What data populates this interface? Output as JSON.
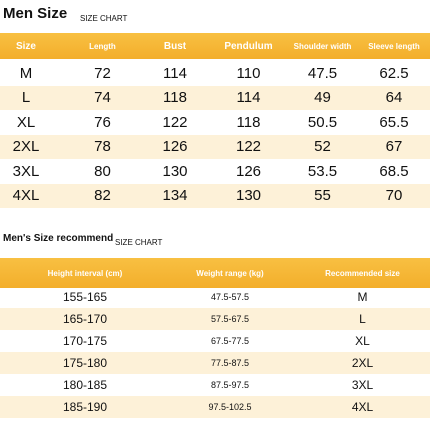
{
  "size_chart": {
    "title": "Men Size",
    "subtitle": "SIZE CHART",
    "columns": [
      "Size",
      "Length",
      "Bust",
      "Pendulum",
      "Shoulder width",
      "Sleeve length"
    ],
    "rows": [
      [
        "M",
        72,
        114,
        110,
        47.5,
        62.5
      ],
      [
        "L",
        74,
        118,
        114,
        49,
        64
      ],
      [
        "XL",
        76,
        122,
        118,
        50.5,
        65.5
      ],
      [
        "2XL",
        78,
        126,
        122,
        52,
        67
      ],
      [
        "3XL",
        80,
        130,
        126,
        53.5,
        68.5
      ],
      [
        "4XL",
        82,
        134,
        130,
        55,
        70
      ]
    ]
  },
  "recommend": {
    "title": "Men's Size recommend",
    "subtitle": "SIZE CHART",
    "columns": [
      "Height interval (cm)",
      "Weight range (kg)",
      "Recommended size"
    ],
    "rows": [
      [
        "155-165",
        "47.5-57.5",
        "M"
      ],
      [
        "165-170",
        "57.5-67.5",
        "L"
      ],
      [
        "170-175",
        "67.5-77.5",
        "XL"
      ],
      [
        "175-180",
        "77.5-87.5",
        "2XL"
      ],
      [
        "180-185",
        "87.5-97.5",
        "3XL"
      ],
      [
        "185-190",
        "97.5-102.5",
        "4XL"
      ]
    ]
  }
}
